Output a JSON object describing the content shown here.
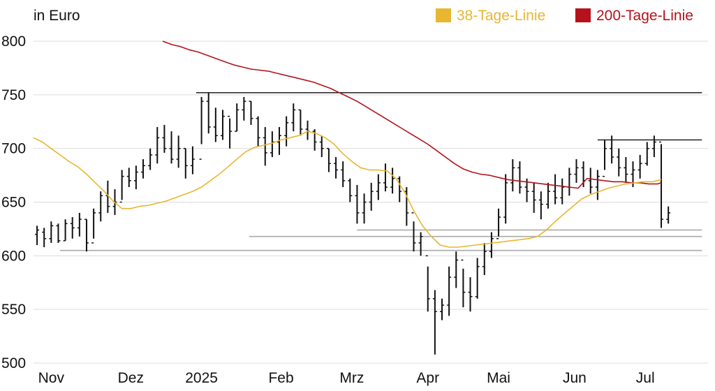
{
  "chart_data": {
    "type": "line",
    "unit_label": "in Euro",
    "colors": {
      "ma38": "#e8b630",
      "ma200": "#b5121b",
      "bars": "#111111",
      "grid": "#dddddd",
      "support": "#aaaaaa",
      "resistance": "#222222"
    },
    "ylim": [
      500,
      800
    ],
    "y_ticks": [
      500,
      550,
      600,
      650,
      700,
      750,
      800
    ],
    "x_range": [
      0,
      37
    ],
    "x_ticks": [
      {
        "label": "Nov",
        "x": 1
      },
      {
        "label": "Dez",
        "x": 5.5
      },
      {
        "label": "2025",
        "x": 9.5
      },
      {
        "label": "Feb",
        "x": 14
      },
      {
        "label": "Mrz",
        "x": 18
      },
      {
        "label": "Apr",
        "x": 22.3
      },
      {
        "label": "Mai",
        "x": 26.3
      },
      {
        "label": "Jun",
        "x": 30.6
      },
      {
        "label": "Jul",
        "x": 34.6
      }
    ],
    "legend": [
      {
        "name": "38-Tage-Linie",
        "key": "ma38"
      },
      {
        "name": "200-Tage-Linie",
        "key": "ma200"
      }
    ],
    "legend_position": "top-right",
    "grid": true,
    "horizontal_lines": [
      {
        "y": 752,
        "x0": 9.2,
        "x1": 37.8,
        "kind": "resistance"
      },
      {
        "y": 708,
        "x0": 31.9,
        "x1": 37.8,
        "kind": "resistance"
      },
      {
        "y": 624,
        "x0": 18.3,
        "x1": 37.8,
        "kind": "support"
      },
      {
        "y": 618,
        "x0": 12.2,
        "x1": 37.8,
        "kind": "support"
      },
      {
        "y": 605,
        "x0": 1.5,
        "x1": 37.8,
        "kind": "support"
      }
    ],
    "ma38": {
      "x": [
        0,
        0.5,
        1,
        1.5,
        2,
        2.5,
        3,
        3.5,
        4,
        4.5,
        5,
        5.5,
        6,
        6.5,
        7,
        7.5,
        8,
        8.5,
        9,
        9.5,
        10,
        10.5,
        11,
        11.5,
        12,
        12.5,
        13,
        13.5,
        14,
        14.5,
        15,
        15.5,
        16,
        16.5,
        17,
        17.5,
        18,
        18.5,
        19,
        19.5,
        20,
        20.5,
        21,
        21.5,
        22,
        22.5,
        23,
        23.5,
        24,
        24.5,
        25,
        25.5,
        26,
        26.5,
        27,
        27.5,
        28,
        28.5,
        29,
        29.5,
        30,
        30.5,
        31,
        31.5,
        32,
        32.5,
        33,
        33.5,
        34,
        34.5,
        35,
        35.5
      ],
      "y": [
        710,
        706,
        700,
        694,
        688,
        683,
        676,
        668,
        660,
        651,
        644,
        644,
        646,
        647,
        649,
        651,
        654,
        657,
        660,
        664,
        670,
        676,
        683,
        690,
        697,
        701,
        703,
        705,
        708,
        710,
        712,
        716,
        714,
        710,
        704,
        695,
        688,
        682,
        680,
        680,
        679,
        672,
        659,
        642,
        628,
        618,
        610,
        608,
        608,
        609,
        610,
        611,
        612,
        613,
        614,
        615,
        616,
        618,
        624,
        632,
        639,
        646,
        653,
        657,
        660,
        663,
        665,
        667,
        668,
        669,
        669,
        671
      ]
    },
    "ma200": {
      "x": [
        7.3,
        7.8,
        8.3,
        8.8,
        9.3,
        9.8,
        10.3,
        10.8,
        11.3,
        11.8,
        12.3,
        12.8,
        13.3,
        13.8,
        14.3,
        14.8,
        15.3,
        15.8,
        16.3,
        16.8,
        17.3,
        17.8,
        18.3,
        18.8,
        19.3,
        19.8,
        20.3,
        20.8,
        21.3,
        21.8,
        22.3,
        22.8,
        23.3,
        23.8,
        24.3,
        24.8,
        25.3,
        25.8,
        26.3,
        26.8,
        27.3,
        27.8,
        28.3,
        28.8,
        29.3,
        29.8,
        30.3,
        30.8,
        31.3,
        31.8,
        32.3,
        32.8,
        33.3,
        33.8,
        34.3,
        34.8,
        35.3,
        35.5
      ],
      "y": [
        800,
        797,
        795,
        792,
        790,
        787,
        784,
        781,
        778,
        776,
        774,
        773,
        772,
        770,
        768,
        766,
        764,
        762,
        759,
        756,
        752,
        748,
        744,
        739,
        734,
        729,
        724,
        719,
        714,
        709,
        704,
        698,
        692,
        686,
        681,
        678,
        676,
        675,
        673,
        671,
        670,
        669,
        668,
        667,
        666,
        665,
        664,
        663,
        672,
        671,
        670,
        669,
        669,
        668,
        668,
        667,
        667,
        668
      ]
    },
    "ohlc": [
      [
        0.2,
        628,
        610,
        620,
        624
      ],
      [
        0.6,
        626,
        608,
        622,
        616
      ],
      [
        1.0,
        632,
        612,
        616,
        628
      ],
      [
        1.4,
        630,
        612,
        628,
        614
      ],
      [
        1.8,
        634,
        614,
        614,
        630
      ],
      [
        2.2,
        636,
        616,
        630,
        626
      ],
      [
        2.6,
        640,
        618,
        626,
        634
      ],
      [
        3.0,
        634,
        604,
        634,
        612
      ],
      [
        3.4,
        644,
        616,
        612,
        640
      ],
      [
        3.8,
        660,
        632,
        640,
        656
      ],
      [
        4.2,
        670,
        640,
        656,
        646
      ],
      [
        4.6,
        662,
        638,
        646,
        650
      ],
      [
        5.0,
        680,
        652,
        650,
        674
      ],
      [
        5.4,
        682,
        664,
        674,
        670
      ],
      [
        5.8,
        684,
        662,
        670,
        678
      ],
      [
        6.2,
        690,
        672,
        678,
        684
      ],
      [
        6.6,
        700,
        680,
        684,
        694
      ],
      [
        7.0,
        720,
        686,
        694,
        710
      ],
      [
        7.4,
        722,
        696,
        710,
        700
      ],
      [
        7.8,
        716,
        686,
        700,
        690
      ],
      [
        8.2,
        712,
        682,
        690,
        700
      ],
      [
        8.6,
        700,
        672,
        700,
        684
      ],
      [
        9.0,
        702,
        676,
        684,
        690
      ],
      [
        9.5,
        748,
        704,
        690,
        744
      ],
      [
        9.9,
        752,
        714,
        744,
        720
      ],
      [
        10.3,
        738,
        706,
        720,
        712
      ],
      [
        10.7,
        736,
        708,
        712,
        730
      ],
      [
        11.1,
        728,
        700,
        730,
        716
      ],
      [
        11.5,
        742,
        716,
        716,
        736
      ],
      [
        11.9,
        748,
        726,
        736,
        744
      ],
      [
        12.3,
        744,
        722,
        744,
        728
      ],
      [
        12.7,
        730,
        702,
        728,
        710
      ],
      [
        13.1,
        720,
        684,
        710,
        696
      ],
      [
        13.5,
        716,
        692,
        696,
        706
      ],
      [
        13.9,
        720,
        694,
        706,
        712
      ],
      [
        14.3,
        730,
        702,
        712,
        724
      ],
      [
        14.7,
        742,
        716,
        724,
        736
      ],
      [
        15.1,
        736,
        712,
        736,
        718
      ],
      [
        15.5,
        726,
        708,
        718,
        716
      ],
      [
        15.9,
        718,
        698,
        716,
        706
      ],
      [
        16.3,
        712,
        692,
        706,
        700
      ],
      [
        16.7,
        700,
        678,
        700,
        686
      ],
      [
        17.1,
        692,
        672,
        686,
        680
      ],
      [
        17.5,
        688,
        664,
        680,
        670
      ],
      [
        17.9,
        672,
        650,
        670,
        656
      ],
      [
        18.3,
        666,
        630,
        656,
        640
      ],
      [
        18.7,
        658,
        630,
        640,
        650
      ],
      [
        19.1,
        668,
        642,
        650,
        660
      ],
      [
        19.5,
        676,
        652,
        660,
        668
      ],
      [
        19.9,
        686,
        660,
        668,
        664
      ],
      [
        20.3,
        682,
        658,
        664,
        672
      ],
      [
        20.7,
        674,
        650,
        672,
        660
      ],
      [
        21.1,
        664,
        628,
        660,
        640
      ],
      [
        21.5,
        632,
        604,
        640,
        612
      ],
      [
        21.9,
        622,
        600,
        612,
        618
      ],
      [
        22.3,
        590,
        548,
        600,
        560
      ],
      [
        22.7,
        568,
        508,
        560,
        548
      ],
      [
        23.1,
        560,
        540,
        548,
        554
      ],
      [
        23.5,
        590,
        544,
        554,
        580
      ],
      [
        23.9,
        604,
        570,
        580,
        596
      ],
      [
        24.3,
        588,
        552,
        596,
        566
      ],
      [
        24.7,
        580,
        548,
        566,
        562
      ],
      [
        25.1,
        598,
        560,
        562,
        590
      ],
      [
        25.5,
        612,
        582,
        590,
        604
      ],
      [
        25.9,
        622,
        598,
        604,
        616
      ],
      [
        26.3,
        644,
        618,
        616,
        636
      ],
      [
        26.7,
        676,
        630,
        636,
        668
      ],
      [
        27.1,
        690,
        660,
        668,
        682
      ],
      [
        27.5,
        688,
        658,
        682,
        664
      ],
      [
        27.9,
        672,
        650,
        664,
        660
      ],
      [
        28.3,
        668,
        640,
        660,
        652
      ],
      [
        28.7,
        660,
        634,
        652,
        648
      ],
      [
        29.1,
        668,
        644,
        648,
        660
      ],
      [
        29.5,
        676,
        648,
        660,
        654
      ],
      [
        29.9,
        672,
        648,
        654,
        664
      ],
      [
        30.3,
        682,
        656,
        664,
        676
      ],
      [
        30.7,
        690,
        668,
        676,
        682
      ],
      [
        31.1,
        688,
        664,
        682,
        670
      ],
      [
        31.5,
        682,
        658,
        670,
        664
      ],
      [
        31.9,
        680,
        652,
        664,
        674
      ],
      [
        32.3,
        708,
        680,
        674,
        700
      ],
      [
        32.7,
        712,
        686,
        700,
        692
      ],
      [
        33.1,
        700,
        674,
        692,
        682
      ],
      [
        33.5,
        692,
        668,
        682,
        676
      ],
      [
        33.9,
        688,
        664,
        676,
        680
      ],
      [
        34.3,
        694,
        672,
        680,
        686
      ],
      [
        34.7,
        706,
        684,
        686,
        700
      ],
      [
        35.1,
        712,
        692,
        700,
        706
      ],
      [
        35.5,
        704,
        626,
        706,
        634
      ],
      [
        35.9,
        646,
        630,
        634,
        640
      ]
    ]
  }
}
